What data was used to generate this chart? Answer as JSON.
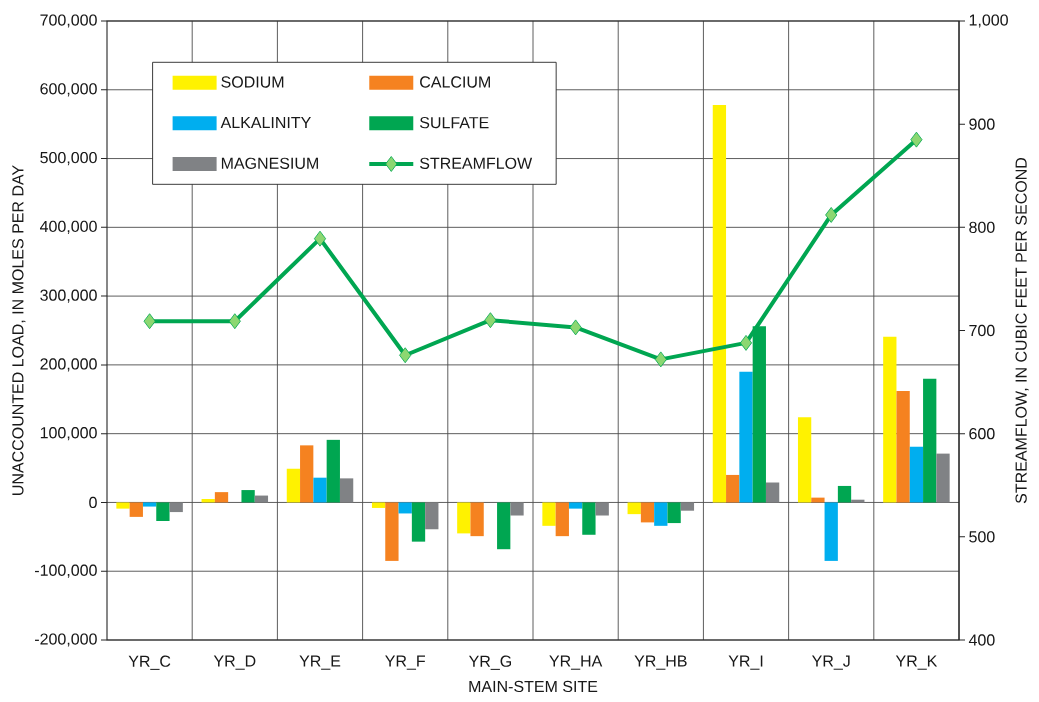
{
  "chart_data": {
    "type": "bar",
    "xlabel": "MAIN-STEM SITE",
    "ylabel": "UNACCOUNTED LOAD, IN MOLES PER DAY",
    "y2label": "STREAMFLOW, IN CUBIC FEET PER SECOND",
    "categories": [
      "YR_C",
      "YR_D",
      "YR_E",
      "YR_F",
      "YR_G",
      "YR_HA",
      "YR_HB",
      "YR_I",
      "YR_J",
      "YR_K"
    ],
    "series": [
      {
        "name": "SODIUM",
        "color": "#fff200",
        "values": [
          -9000,
          5000,
          49000,
          -8000,
          -45000,
          -34000,
          -17000,
          578000,
          124000,
          241000
        ]
      },
      {
        "name": "CALCIUM",
        "color": "#f58220",
        "values": [
          -21000,
          15000,
          83000,
          -85000,
          -49000,
          -49000,
          -29000,
          40000,
          7000,
          162000
        ]
      },
      {
        "name": "ALKALINITY",
        "color": "#00aeef",
        "values": [
          -6000,
          0,
          36000,
          -16000,
          0,
          -9000,
          -34000,
          190000,
          -85000,
          81000
        ]
      },
      {
        "name": "SULFATE",
        "color": "#00a651",
        "values": [
          -27000,
          18000,
          91000,
          -57000,
          -68000,
          -47000,
          -30000,
          256000,
          24000,
          180000
        ]
      },
      {
        "name": "MAGNESIUM",
        "color": "#808285",
        "values": [
          -14000,
          10000,
          35000,
          -39000,
          -19000,
          -19000,
          -12000,
          29000,
          4000,
          71000
        ]
      },
      {
        "name": "STREAMFLOW",
        "type": "line",
        "axis": "y2",
        "color": "#00a651",
        "marker": "diamond",
        "values": [
          709,
          709,
          789,
          676,
          710,
          703,
          672,
          688,
          812,
          885
        ]
      }
    ],
    "ylim": [
      -200000,
      700000
    ],
    "yticks": [
      {
        "value": -200000,
        "label": "-200,000"
      },
      {
        "value": -100000,
        "label": "-100,000"
      },
      0,
      {
        "value": 100000,
        "label": "100,000"
      },
      {
        "value": 200000,
        "label": "200,000"
      },
      {
        "value": 300000,
        "label": "300,000"
      },
      {
        "value": 400000,
        "label": "400,000"
      },
      {
        "value": 500000,
        "label": "500,000"
      },
      {
        "value": 600000,
        "label": "600,000"
      },
      {
        "value": 700000,
        "label": "700,000"
      }
    ],
    "y2lim": [
      400,
      1000
    ],
    "y2ticks": [
      400,
      500,
      600,
      700,
      800,
      900,
      {
        "value": 1000,
        "label": "1,000"
      }
    ],
    "grid": true,
    "legend": "top left"
  }
}
